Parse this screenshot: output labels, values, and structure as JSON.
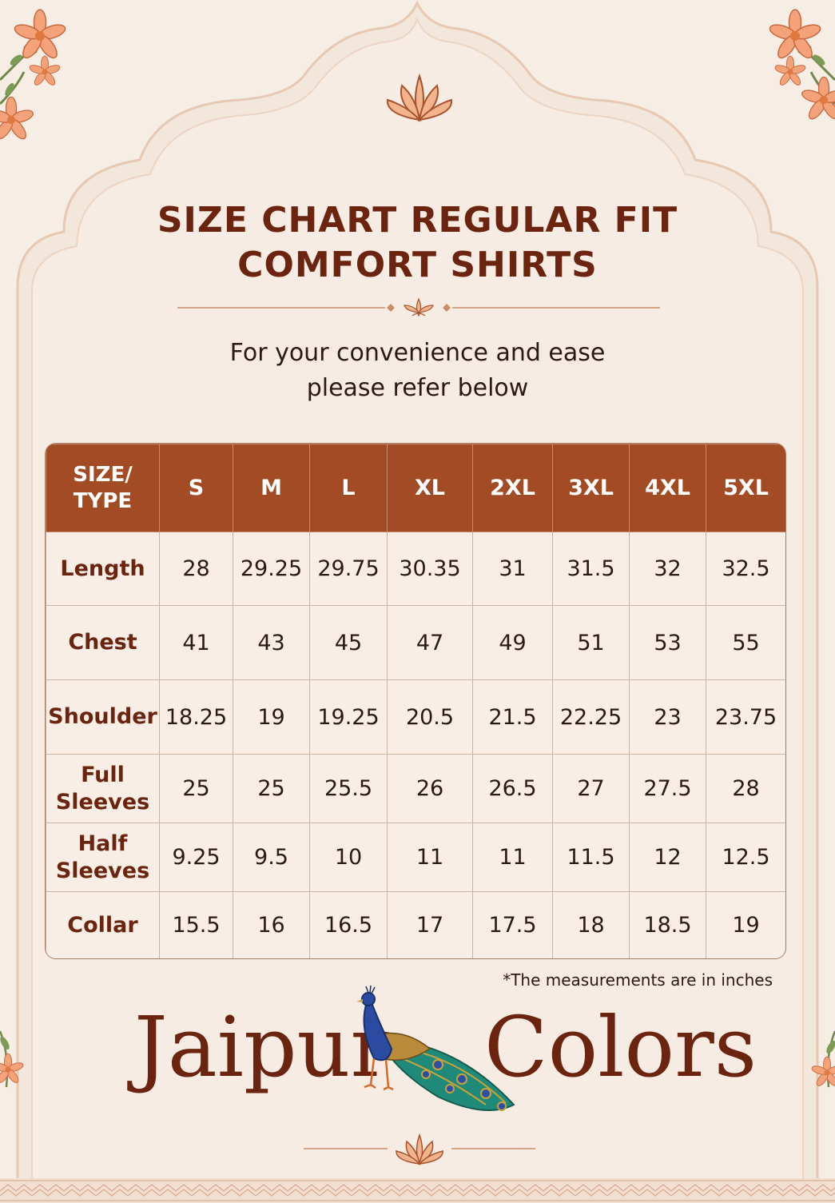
{
  "title": {
    "line1": "SIZE CHART REGULAR FIT",
    "line2": "COMFORT SHIRTS"
  },
  "subtitle": {
    "line1": "For your convenience and ease",
    "line2": "please refer below"
  },
  "table": {
    "header": {
      "label_line1": "SIZE/",
      "label_line2": "TYPE",
      "sizes": [
        "S",
        "M",
        "L",
        "XL",
        "2XL",
        "3XL",
        "4XL",
        "5XL"
      ]
    },
    "rows": [
      {
        "label_line1": "Length",
        "label_line2": "",
        "values": [
          "28",
          "29.25",
          "29.75",
          "30.35",
          "31",
          "31.5",
          "32",
          "32.5"
        ]
      },
      {
        "label_line1": "Chest",
        "label_line2": "",
        "values": [
          "41",
          "43",
          "45",
          "47",
          "49",
          "51",
          "53",
          "55"
        ]
      },
      {
        "label_line1": "Shoulder",
        "label_line2": "",
        "values": [
          "18.25",
          "19",
          "19.25",
          "20.5",
          "21.5",
          "22.25",
          "23",
          "23.75"
        ]
      },
      {
        "label_line1": "Full",
        "label_line2": "Sleeves",
        "values": [
          "25",
          "25",
          "25.5",
          "26",
          "26.5",
          "27",
          "27.5",
          "28"
        ]
      },
      {
        "label_line1": "Half",
        "label_line2": "Sleeves",
        "values": [
          "9.25",
          "9.5",
          "10",
          "11",
          "11",
          "11.5",
          "12",
          "12.5"
        ]
      },
      {
        "label_line1": "Collar",
        "label_line2": "",
        "values": [
          "15.5",
          "16",
          "16.5",
          "17",
          "17.5",
          "18",
          "18.5",
          "19"
        ]
      }
    ]
  },
  "note": "*The measurements are in inches",
  "brand": {
    "word1": "Jaipur",
    "word2": "Colors"
  },
  "colors": {
    "background": "#f6ede5",
    "arch_fill": "#f3e6db",
    "title_brown": "#6b2410",
    "header_rust": "#a24b24",
    "flower_orange": "#e98a5e"
  },
  "icons": [
    "lotus-icon",
    "peacock-icon",
    "floral-corner-icon"
  ]
}
